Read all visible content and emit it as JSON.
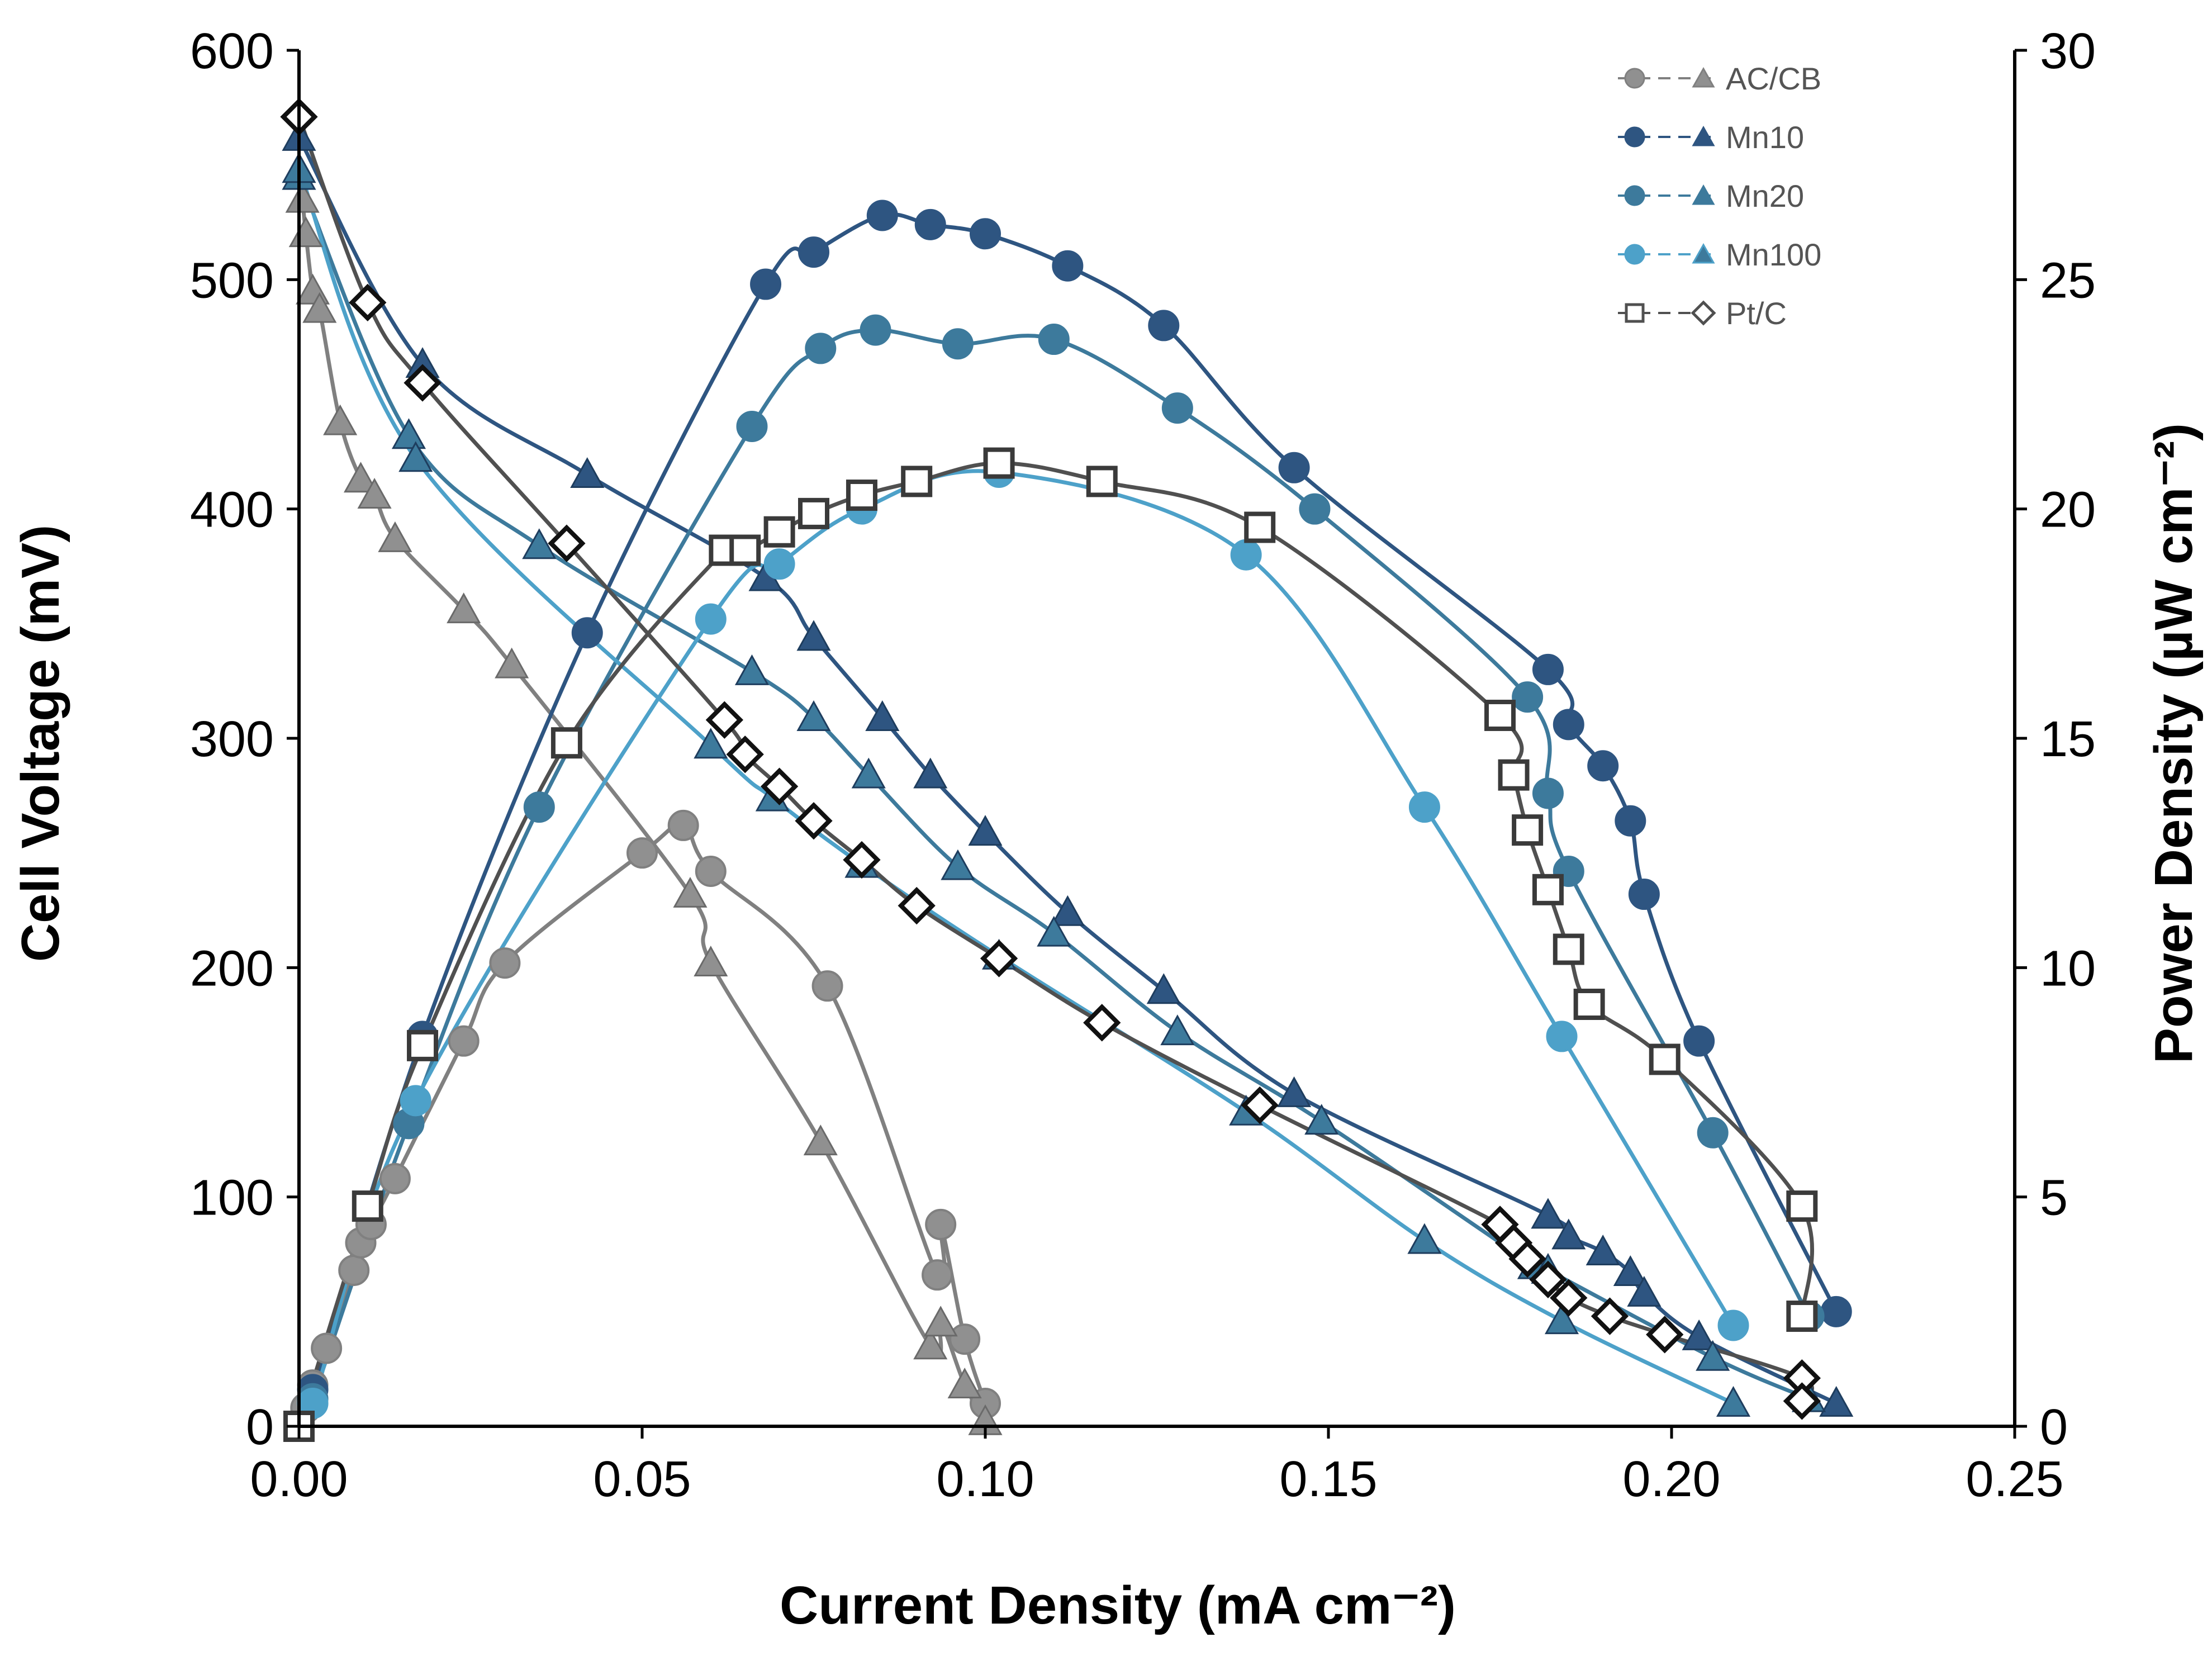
{
  "chart_data": {
    "type": "line",
    "xlabel": "Current Density (mA cm⁻²)",
    "ylabel": "Cell Voltage (mV)",
    "y2label": "Power Density (µW cm⁻²)",
    "xlim": [
      0,
      0.25
    ],
    "ylim": [
      0,
      600
    ],
    "y2lim": [
      0,
      30
    ],
    "x_ticks": [
      0,
      0.05,
      0.1,
      0.15,
      0.2,
      0.25
    ],
    "x_tick_labels": [
      "0.00",
      "0.05",
      "0.10",
      "0.15",
      "0.20",
      "0.25"
    ],
    "y_ticks": [
      0,
      100,
      200,
      300,
      400,
      500,
      600
    ],
    "y_tick_labels": [
      "0",
      "100",
      "200",
      "300",
      "400",
      "500",
      "600"
    ],
    "y2_ticks": [
      0,
      5,
      10,
      15,
      20,
      25,
      30
    ],
    "y2_tick_labels": [
      "0",
      "5",
      "10",
      "15",
      "20",
      "25",
      "30"
    ],
    "legend_position": "top-right",
    "legend": [
      {
        "label": "AC/CB",
        "color": "#808080",
        "marker_power": "circle",
        "marker_voltage": "triangle"
      },
      {
        "label": "Mn10",
        "color": "#2e5581",
        "marker_power": "circle",
        "marker_voltage": "triangle"
      },
      {
        "label": "Mn20",
        "color": "#3d7a9c",
        "marker_power": "circle",
        "marker_voltage": "triangle"
      },
      {
        "label": "Mn100",
        "color": "#4da1c9",
        "marker_power": "circle",
        "marker_voltage": "triangle"
      },
      {
        "label": "Pt/C",
        "color": "#505050",
        "marker_power": "open-square",
        "marker_voltage": "open-diamond"
      }
    ],
    "series": [
      {
        "name": "AC/CB power",
        "legend": "AC/CB",
        "axis": "right",
        "marker": "circle",
        "color": "#808080",
        "marker_fill": "#909090",
        "points": [
          [
            0.0,
            0
          ],
          [
            0.001,
            0.4
          ],
          [
            0.002,
            0.9
          ],
          [
            0.004,
            1.7
          ],
          [
            0.008,
            3.4
          ],
          [
            0.009,
            4.0
          ],
          [
            0.0105,
            4.4
          ],
          [
            0.014,
            5.4
          ],
          [
            0.024,
            8.4
          ],
          [
            0.03,
            10.1
          ],
          [
            0.05,
            12.5
          ],
          [
            0.056,
            13.1
          ],
          [
            0.06,
            12.1
          ],
          [
            0.077,
            9.6
          ],
          [
            0.093,
            3.3
          ],
          [
            0.0935,
            4.4
          ],
          [
            0.097,
            1.9
          ],
          [
            0.1,
            0.5
          ]
        ]
      },
      {
        "name": "AC/CB voltage",
        "legend": "AC/CB",
        "axis": "left",
        "marker": "triangle",
        "color": "#808080",
        "marker_fill": "#909090",
        "points": [
          [
            0.0005,
            535
          ],
          [
            0.001,
            520
          ],
          [
            0.002,
            495
          ],
          [
            0.003,
            487
          ],
          [
            0.006,
            438
          ],
          [
            0.009,
            413
          ],
          [
            0.011,
            406
          ],
          [
            0.014,
            387
          ],
          [
            0.024,
            356
          ],
          [
            0.031,
            332
          ],
          [
            0.057,
            232
          ],
          [
            0.06,
            202
          ],
          [
            0.076,
            124
          ],
          [
            0.092,
            35
          ],
          [
            0.0935,
            45
          ],
          [
            0.097,
            18
          ],
          [
            0.1,
            2
          ]
        ]
      },
      {
        "name": "Mn10 power",
        "legend": "Mn10",
        "axis": "right",
        "marker": "circle",
        "color": "#2e5581",
        "marker_fill": "#2e5581",
        "points": [
          [
            0.0,
            0
          ],
          [
            0.002,
            0.8
          ],
          [
            0.018,
            8.5
          ],
          [
            0.042,
            17.3
          ],
          [
            0.068,
            24.9
          ],
          [
            0.075,
            25.6
          ],
          [
            0.085,
            26.4
          ],
          [
            0.092,
            26.2
          ],
          [
            0.1,
            26.0
          ],
          [
            0.112,
            25.3
          ],
          [
            0.126,
            24.0
          ],
          [
            0.145,
            20.9
          ],
          [
            0.182,
            16.5
          ],
          [
            0.185,
            15.3
          ],
          [
            0.19,
            14.4
          ],
          [
            0.194,
            13.2
          ],
          [
            0.196,
            11.6
          ],
          [
            0.204,
            8.4
          ],
          [
            0.224,
            2.5
          ]
        ]
      },
      {
        "name": "Mn10 voltage",
        "legend": "Mn10",
        "axis": "left",
        "marker": "triangle",
        "color": "#2e5581",
        "marker_fill": "#2e5581",
        "points": [
          [
            0.0,
            562
          ],
          [
            0.018,
            463
          ],
          [
            0.042,
            415
          ],
          [
            0.068,
            370
          ],
          [
            0.075,
            344
          ],
          [
            0.085,
            309
          ],
          [
            0.092,
            284
          ],
          [
            0.1,
            259
          ],
          [
            0.112,
            224
          ],
          [
            0.126,
            190
          ],
          [
            0.145,
            145
          ],
          [
            0.182,
            92
          ],
          [
            0.185,
            83
          ],
          [
            0.19,
            76
          ],
          [
            0.194,
            67
          ],
          [
            0.196,
            58
          ],
          [
            0.204,
            39
          ],
          [
            0.224,
            10
          ]
        ]
      },
      {
        "name": "Mn20 power",
        "legend": "Mn20",
        "axis": "right",
        "marker": "circle",
        "color": "#3d7a9c",
        "marker_fill": "#3d7a9c",
        "points": [
          [
            0.0,
            0
          ],
          [
            0.002,
            0.6
          ],
          [
            0.016,
            6.6
          ],
          [
            0.035,
            13.5
          ],
          [
            0.066,
            21.8
          ],
          [
            0.076,
            23.5
          ],
          [
            0.084,
            23.9
          ],
          [
            0.096,
            23.6
          ],
          [
            0.11,
            23.7
          ],
          [
            0.128,
            22.2
          ],
          [
            0.148,
            20.0
          ],
          [
            0.179,
            15.9
          ],
          [
            0.182,
            13.8
          ],
          [
            0.185,
            12.1
          ],
          [
            0.206,
            6.4
          ],
          [
            0.22,
            2.4
          ]
        ]
      },
      {
        "name": "Mn20 voltage",
        "legend": "Mn20",
        "axis": "left",
        "marker": "triangle",
        "color": "#3d7a9c",
        "marker_fill": "#3d7a9c",
        "points": [
          [
            0.0,
            545
          ],
          [
            0.016,
            432
          ],
          [
            0.035,
            384
          ],
          [
            0.066,
            329
          ],
          [
            0.075,
            309
          ],
          [
            0.083,
            284
          ],
          [
            0.096,
            244
          ],
          [
            0.11,
            215
          ],
          [
            0.128,
            172
          ],
          [
            0.149,
            133
          ],
          [
            0.18,
            70
          ],
          [
            0.182,
            68
          ],
          [
            0.206,
            30
          ],
          [
            0.22,
            12
          ]
        ]
      },
      {
        "name": "Mn100 power",
        "legend": "Mn100",
        "axis": "right",
        "marker": "circle",
        "color": "#4da1c9",
        "marker_fill": "#4da1c9",
        "points": [
          [
            0.0,
            0
          ],
          [
            0.002,
            0.5
          ],
          [
            0.017,
            7.1
          ],
          [
            0.06,
            17.6
          ],
          [
            0.07,
            18.8
          ],
          [
            0.082,
            20.0
          ],
          [
            0.102,
            20.8
          ],
          [
            0.138,
            19.0
          ],
          [
            0.164,
            13.5
          ],
          [
            0.184,
            8.5
          ],
          [
            0.209,
            2.2
          ]
        ]
      },
      {
        "name": "Mn100 voltage",
        "legend": "Mn100",
        "axis": "left",
        "marker": "triangle",
        "color": "#4da1c9",
        "marker_fill": "#3d7a9c",
        "points": [
          [
            0.0,
            548
          ],
          [
            0.017,
            422
          ],
          [
            0.06,
            297
          ],
          [
            0.069,
            274
          ],
          [
            0.082,
            245
          ],
          [
            0.102,
            205
          ],
          [
            0.138,
            137
          ],
          [
            0.164,
            81
          ],
          [
            0.184,
            46
          ],
          [
            0.209,
            10
          ]
        ]
      },
      {
        "name": "Pt/C power",
        "legend": "Pt/C",
        "axis": "right",
        "marker": "open-square",
        "color": "#505050",
        "marker_fill": "#ffffff",
        "points": [
          [
            0.0,
            0
          ],
          [
            0.01,
            4.8
          ],
          [
            0.018,
            8.3
          ],
          [
            0.039,
            14.9
          ],
          [
            0.062,
            19.1
          ],
          [
            0.065,
            19.1
          ],
          [
            0.07,
            19.5
          ],
          [
            0.075,
            19.9
          ],
          [
            0.082,
            20.3
          ],
          [
            0.09,
            20.6
          ],
          [
            0.102,
            21.0
          ],
          [
            0.117,
            20.6
          ],
          [
            0.14,
            19.6
          ],
          [
            0.175,
            15.5
          ],
          [
            0.177,
            14.2
          ],
          [
            0.179,
            13.0
          ],
          [
            0.182,
            11.7
          ],
          [
            0.185,
            10.4
          ],
          [
            0.188,
            9.2
          ],
          [
            0.199,
            8.0
          ],
          [
            0.219,
            4.8
          ],
          [
            0.219,
            2.4
          ]
        ]
      },
      {
        "name": "Pt/C voltage",
        "legend": "Pt/C",
        "axis": "left",
        "marker": "open-diamond",
        "color": "#505050",
        "marker_fill": "#ffffff",
        "points": [
          [
            0.0,
            571
          ],
          [
            0.01,
            490
          ],
          [
            0.018,
            455
          ],
          [
            0.039,
            385
          ],
          [
            0.062,
            308
          ],
          [
            0.065,
            293
          ],
          [
            0.07,
            279
          ],
          [
            0.075,
            264
          ],
          [
            0.082,
            247
          ],
          [
            0.09,
            227
          ],
          [
            0.102,
            204
          ],
          [
            0.117,
            176
          ],
          [
            0.14,
            140
          ],
          [
            0.175,
            88
          ],
          [
            0.177,
            80
          ],
          [
            0.179,
            73
          ],
          [
            0.182,
            64
          ],
          [
            0.185,
            56
          ],
          [
            0.191,
            48
          ],
          [
            0.199,
            40
          ],
          [
            0.219,
            21
          ],
          [
            0.219,
            11
          ]
        ]
      }
    ]
  }
}
